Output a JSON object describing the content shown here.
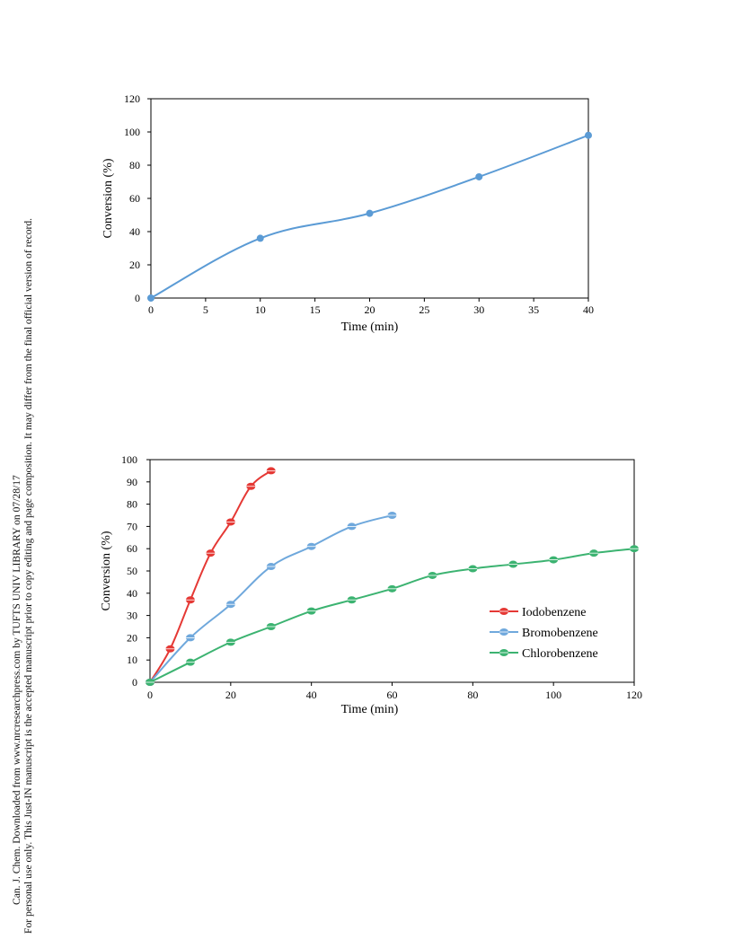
{
  "sidebar": {
    "line1": "Can. J. Chem. Downloaded from www.nrcresearchpress.com by TUFTS UNIV LIBRARY on 07/28/17",
    "line2": "For personal use only. This Just-IN manuscript is the accepted manuscript prior to copy editing and page composition. It may differ from the final official version of record."
  },
  "chart_data": [
    {
      "type": "line",
      "title": "",
      "xlabel": "Time (min)",
      "ylabel": "Conversion (%)",
      "xlim": [
        0,
        40
      ],
      "ylim": [
        0,
        120
      ],
      "xticks": [
        0,
        5,
        10,
        15,
        20,
        25,
        30,
        35,
        40
      ],
      "yticks": [
        0,
        20,
        40,
        60,
        80,
        100,
        120
      ],
      "grid": false,
      "color": "#5b9bd5",
      "series": [
        {
          "x": [
            0,
            10,
            20,
            30,
            40
          ],
          "y": [
            0,
            36,
            51,
            73,
            98
          ]
        }
      ]
    },
    {
      "type": "line",
      "title": "",
      "xlabel": "Time (min)",
      "ylabel": "Conversion (%)",
      "xlim": [
        0,
        120
      ],
      "ylim": [
        0,
        100
      ],
      "xticks": [
        0,
        20,
        40,
        60,
        80,
        100,
        120
      ],
      "yticks": [
        0,
        10,
        20,
        30,
        40,
        50,
        60,
        70,
        80,
        90,
        100
      ],
      "grid": false,
      "legend": "right",
      "series": [
        {
          "name": "Iodobenzene",
          "color": "#e53935",
          "x": [
            0,
            5,
            10,
            15,
            20,
            25,
            30
          ],
          "y": [
            0,
            15,
            37,
            58,
            72,
            88,
            95
          ]
        },
        {
          "name": "Bromobenzene",
          "color": "#6fa8dc",
          "x": [
            0,
            10,
            20,
            30,
            40,
            50,
            60
          ],
          "y": [
            0,
            20,
            35,
            52,
            61,
            70,
            75
          ]
        },
        {
          "name": "Chlorobenzene",
          "color": "#3cb371",
          "x": [
            0,
            10,
            20,
            30,
            40,
            50,
            60,
            70,
            80,
            90,
            100,
            110,
            120
          ],
          "y": [
            0,
            9,
            18,
            25,
            32,
            37,
            42,
            48,
            51,
            53,
            55,
            58,
            60
          ]
        }
      ]
    }
  ]
}
